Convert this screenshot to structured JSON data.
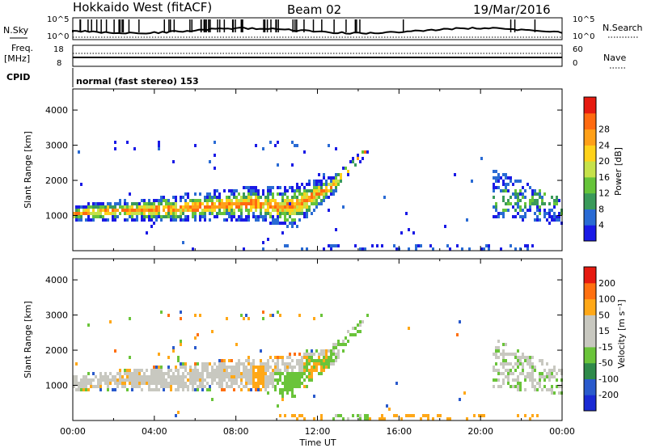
{
  "header": {
    "station": "Hokkaido West (fitACF)",
    "beam": "Beam 02",
    "date": "19/Mar/2016"
  },
  "status_panel": {
    "nsky_label": "N.Sky",
    "nsky_ticks": [
      "10^5",
      "10^0"
    ],
    "nsearch_label": "N.Search",
    "nsearch_ticks": [
      "10^5",
      "10^0"
    ],
    "freq_label": "Freq.",
    "freq_unit": "[MHz]",
    "freq_ticks": [
      "18",
      "8"
    ],
    "nave_label": "Nave",
    "nave_ticks": [
      "60",
      "0"
    ],
    "cpid_label": "CPID",
    "cpid_text": "normal (fast stereo) 153"
  },
  "chart_data": [
    {
      "type": "heatmap",
      "name": "power",
      "ylabel": "Slant Range [km]",
      "ylim": [
        0,
        4600
      ],
      "yticks": [
        "1000",
        "2000",
        "3000",
        "4000"
      ],
      "xlim": [
        0,
        24
      ],
      "colorbar_label": "Power [dB]",
      "colorbar_ticks": [
        "4",
        "8",
        "12",
        "16",
        "20",
        "24",
        "28"
      ],
      "colorbar_colors": [
        "#1a1ae6",
        "#2a6bd4",
        "#3a9a5a",
        "#66c43a",
        "#c6e24a",
        "#ffd21a",
        "#ffa018",
        "#ff6a10",
        "#e61a10"
      ]
    },
    {
      "type": "heatmap",
      "name": "velocity",
      "ylabel": "Slant Range [km]",
      "ylim": [
        0,
        4600
      ],
      "yticks": [
        "1000",
        "2000",
        "3000",
        "4000"
      ],
      "xlim": [
        0,
        24
      ],
      "xlabel": "Time UT",
      "xticks": [
        "00:00",
        "04:00",
        "08:00",
        "12:00",
        "16:00",
        "20:00",
        "00:00"
      ],
      "colorbar_label": "Velocity [m s⁻¹]",
      "colorbar_ticks": [
        "200",
        "100",
        "50",
        "15",
        "-15",
        "-50",
        "-100",
        "-200"
      ],
      "colorbar_colors": [
        "#1a2ad4",
        "#2a5acc",
        "#2f8a4a",
        "#6ac43a",
        "#c8c8c0",
        "#c8c8c0",
        "#ffa818",
        "#ff7010",
        "#e61a10"
      ]
    }
  ]
}
